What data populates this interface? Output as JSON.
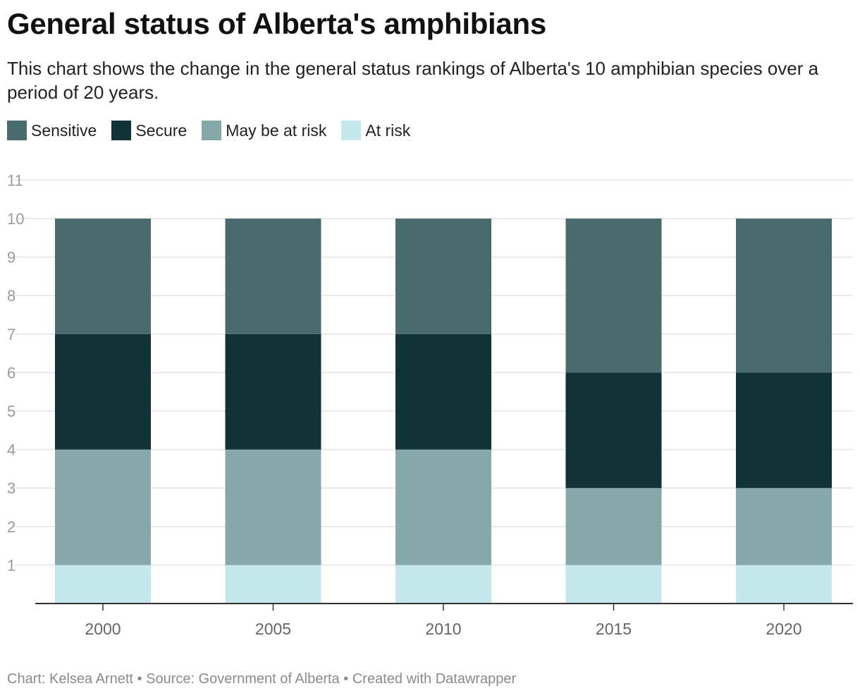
{
  "title": "General status of Alberta's amphibians",
  "subtitle": "This chart shows the change in the general status rankings of Alberta's 10 amphibian species over a period of 20 years.",
  "footer": {
    "chart_credit": "Chart: Kelsea Arnett",
    "separator": "•",
    "source": "Source: Government of Alberta",
    "tool": "Created with Datawrapper"
  },
  "colors": {
    "sensitive": "#4a6b6e",
    "secure": "#113337",
    "may_be_at_risk": "#86a8aa",
    "at_risk": "#c3e7ea",
    "gridline": "#e3e3e3",
    "axis": "#333333",
    "tick_label": "#9a9a9a",
    "x_label": "#666666"
  },
  "legend": [
    {
      "key": "sensitive",
      "label": "Sensitive"
    },
    {
      "key": "secure",
      "label": "Secure"
    },
    {
      "key": "may_be_at_risk",
      "label": "May be at risk"
    },
    {
      "key": "at_risk",
      "label": "At risk"
    }
  ],
  "chart_data": {
    "type": "bar",
    "stacked": true,
    "title": "General status of Alberta's amphibians",
    "xlabel": "",
    "ylabel": "",
    "categories": [
      "2000",
      "2005",
      "2010",
      "2015",
      "2020"
    ],
    "ylim": [
      0,
      11
    ],
    "yticks": [
      1,
      2,
      3,
      4,
      5,
      6,
      7,
      8,
      9,
      10,
      11
    ],
    "grid": true,
    "legend_position": "top-left",
    "stack_order_bottom_to_top": [
      "at_risk",
      "may_be_at_risk",
      "secure",
      "sensitive"
    ],
    "series": [
      {
        "key": "at_risk",
        "name": "At risk",
        "values": [
          1,
          1,
          1,
          1,
          1
        ]
      },
      {
        "key": "may_be_at_risk",
        "name": "May be at risk",
        "values": [
          3,
          3,
          3,
          2,
          2
        ]
      },
      {
        "key": "secure",
        "name": "Secure",
        "values": [
          3,
          3,
          3,
          3,
          3
        ]
      },
      {
        "key": "sensitive",
        "name": "Sensitive",
        "values": [
          3,
          3,
          3,
          4,
          4
        ]
      }
    ]
  }
}
